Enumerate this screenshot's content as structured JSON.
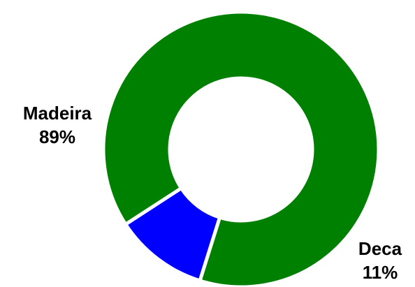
{
  "chart_data": {
    "type": "pie",
    "variant": "donut",
    "title": "",
    "series": [
      {
        "labels": [
          "Madeira",
          "Deca"
        ],
        "values": [
          89,
          11
        ],
        "display_pct": [
          "89%",
          "11%"
        ],
        "colors": [
          "#008000",
          "#0000ff"
        ]
      }
    ],
    "legend": "none",
    "slice_border_color": "#ffffff"
  }
}
